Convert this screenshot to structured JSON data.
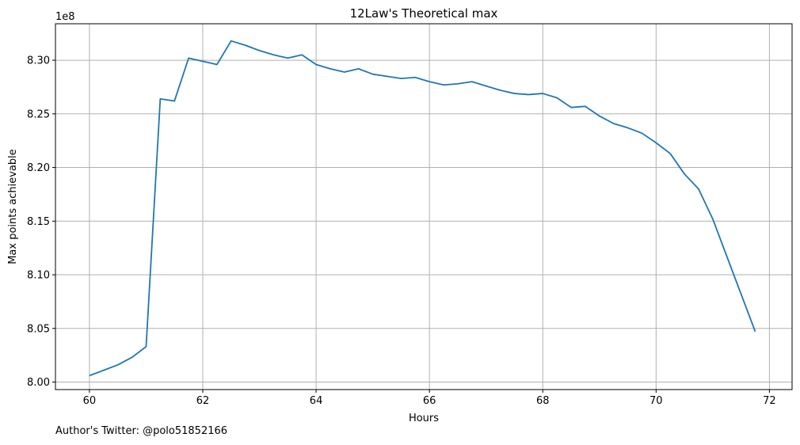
{
  "footer_text": "Author's Twitter: @polo51852166",
  "chart_data": {
    "type": "line",
    "title": "12Law's Theoretical max",
    "xlabel": "Hours",
    "ylabel": "Max points achievable",
    "y_offset_label": "1e8",
    "xlim": [
      59.4,
      72.4
    ],
    "ylim": [
      7.993,
      8.334
    ],
    "x_ticks": [
      60,
      62,
      64,
      66,
      68,
      70,
      72
    ],
    "x_tick_labels": [
      "60",
      "62",
      "64",
      "66",
      "68",
      "70",
      "72"
    ],
    "y_ticks": [
      8.0,
      8.05,
      8.1,
      8.15,
      8.2,
      8.25,
      8.3
    ],
    "y_tick_labels": [
      "8.00",
      "8.05",
      "8.10",
      "8.15",
      "8.20",
      "8.25",
      "8.30"
    ],
    "grid": true,
    "line_color": "#1f77b4",
    "series": [
      {
        "x": [
          60,
          60.25,
          60.5,
          60.75,
          61,
          61.25,
          61.5,
          61.75,
          62,
          62.25,
          62.5,
          62.75,
          63,
          63.25,
          63.5,
          63.75,
          64,
          64.25,
          64.5,
          64.75,
          65,
          65.25,
          65.5,
          65.75,
          66,
          66.25,
          66.5,
          66.75,
          67,
          67.25,
          67.5,
          67.75,
          68,
          68.25,
          68.5,
          68.75,
          69,
          69.25,
          69.5,
          69.75,
          70,
          70.25,
          70.5,
          70.75,
          71,
          71.25,
          71.5,
          71.75
        ],
        "values": [
          8.006,
          8.011,
          8.016,
          8.023,
          8.033,
          8.264,
          8.262,
          8.302,
          8.299,
          8.296,
          8.318,
          8.314,
          8.309,
          8.305,
          8.302,
          8.305,
          8.296,
          8.292,
          8.289,
          8.292,
          8.287,
          8.285,
          8.283,
          8.284,
          8.28,
          8.277,
          8.278,
          8.28,
          8.276,
          8.272,
          8.269,
          8.268,
          8.269,
          8.265,
          8.256,
          8.257,
          8.248,
          8.241,
          8.237,
          8.232,
          8.223,
          8.213,
          8.194,
          8.18,
          8.152,
          8.117,
          8.082,
          8.047
        ]
      }
    ]
  }
}
